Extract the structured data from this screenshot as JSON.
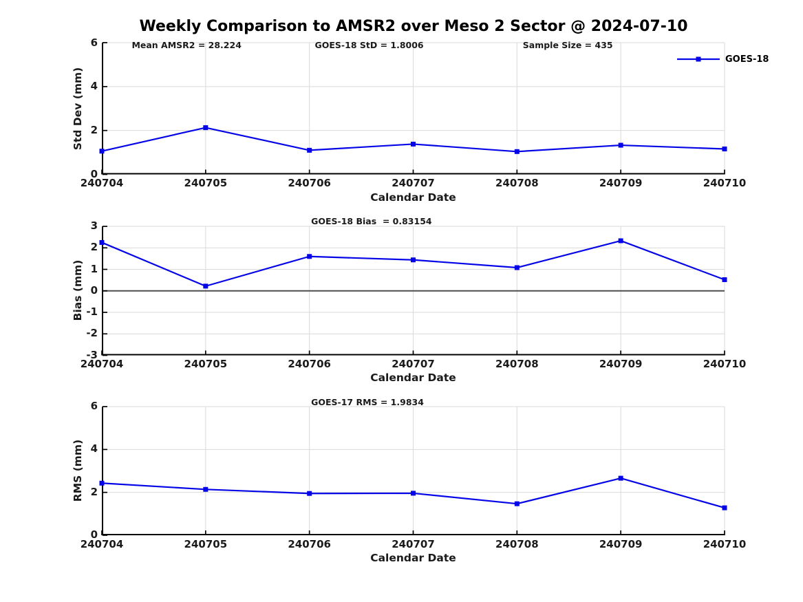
{
  "title": "Weekly Comparison to AMSR2 over Meso 2 Sector @ 2024-07-10",
  "legend": {
    "label": "GOES-18"
  },
  "colors": {
    "line": "#0505e8",
    "grid": "#d9d9d9",
    "spine": "#000000",
    "zero_line": "#4d4d4d",
    "text": "#1a1a1a"
  },
  "chart_data": [
    {
      "type": "line",
      "x": [
        "240704",
        "240705",
        "240706",
        "240707",
        "240708",
        "240709",
        "240710"
      ],
      "series": [
        {
          "name": "GOES-18",
          "values": [
            1.06,
            2.13,
            1.1,
            1.38,
            1.04,
            1.33,
            1.16
          ]
        }
      ],
      "xlabel": "Calendar Date",
      "ylabel": "Std Dev (mm)",
      "ylim": [
        0,
        6
      ],
      "yticks": [
        0,
        2,
        4,
        6
      ],
      "grid": true,
      "zero_line": false,
      "marker": "square",
      "legend_position": "top-right-outside",
      "annotations": [
        "Mean AMSR2 = 28.224",
        "GOES-18 StD = 1.8006",
        "Sample Size = 435"
      ]
    },
    {
      "type": "line",
      "x": [
        "240704",
        "240705",
        "240706",
        "240707",
        "240708",
        "240709",
        "240710"
      ],
      "series": [
        {
          "name": "GOES-18",
          "values": [
            2.25,
            0.22,
            1.6,
            1.44,
            1.08,
            2.33,
            0.52
          ]
        }
      ],
      "xlabel": "Calendar Date",
      "ylabel": "Bias (mm)",
      "ylim": [
        -3,
        3
      ],
      "yticks": [
        -3,
        -2,
        -1,
        0,
        1,
        2,
        3
      ],
      "grid": true,
      "zero_line": true,
      "marker": "square",
      "legend_position": "none",
      "annotations": [
        "GOES-18 Bias  = 0.83154"
      ]
    },
    {
      "type": "line",
      "x": [
        "240704",
        "240705",
        "240706",
        "240707",
        "240708",
        "240709",
        "240710"
      ],
      "series": [
        {
          "name": "GOES-18",
          "values": [
            2.43,
            2.14,
            1.95,
            1.96,
            1.47,
            2.66,
            1.28
          ]
        }
      ],
      "xlabel": "Calendar Date",
      "ylabel": "RMS (mm)",
      "ylim": [
        0,
        6
      ],
      "yticks": [
        0,
        2,
        4,
        6
      ],
      "grid": true,
      "zero_line": false,
      "marker": "square",
      "legend_position": "none",
      "annotations": [
        "GOES-17 RMS = 1.9834"
      ]
    }
  ]
}
